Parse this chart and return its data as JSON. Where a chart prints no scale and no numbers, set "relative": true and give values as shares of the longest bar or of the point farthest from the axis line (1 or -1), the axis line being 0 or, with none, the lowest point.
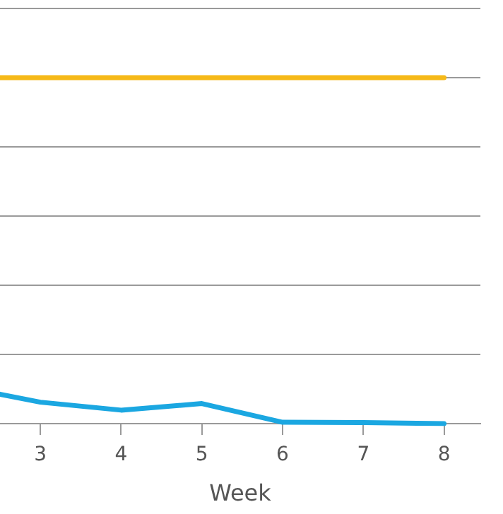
{
  "chart_data": {
    "type": "line",
    "xlabel": "Week",
    "relative": true,
    "xlim": [
      2.5,
      8.45
    ],
    "xticks": [
      3,
      4,
      5,
      6,
      7,
      8
    ],
    "series": [
      {
        "color": "#f6b918",
        "x": [
          2.5,
          3,
          4,
          5,
          6,
          7,
          8
        ],
        "values": [
          1,
          1,
          1,
          1,
          1,
          1,
          1
        ]
      },
      {
        "color": "#1ba7e1",
        "x": [
          2.5,
          3,
          4,
          5,
          6,
          7,
          8
        ],
        "values": [
          0.085,
          0.062,
          0.039,
          0.058,
          0.004,
          0.003,
          0
        ]
      }
    ],
    "grid": "y",
    "legend": false,
    "marker": "none",
    "line_style": "solid"
  }
}
